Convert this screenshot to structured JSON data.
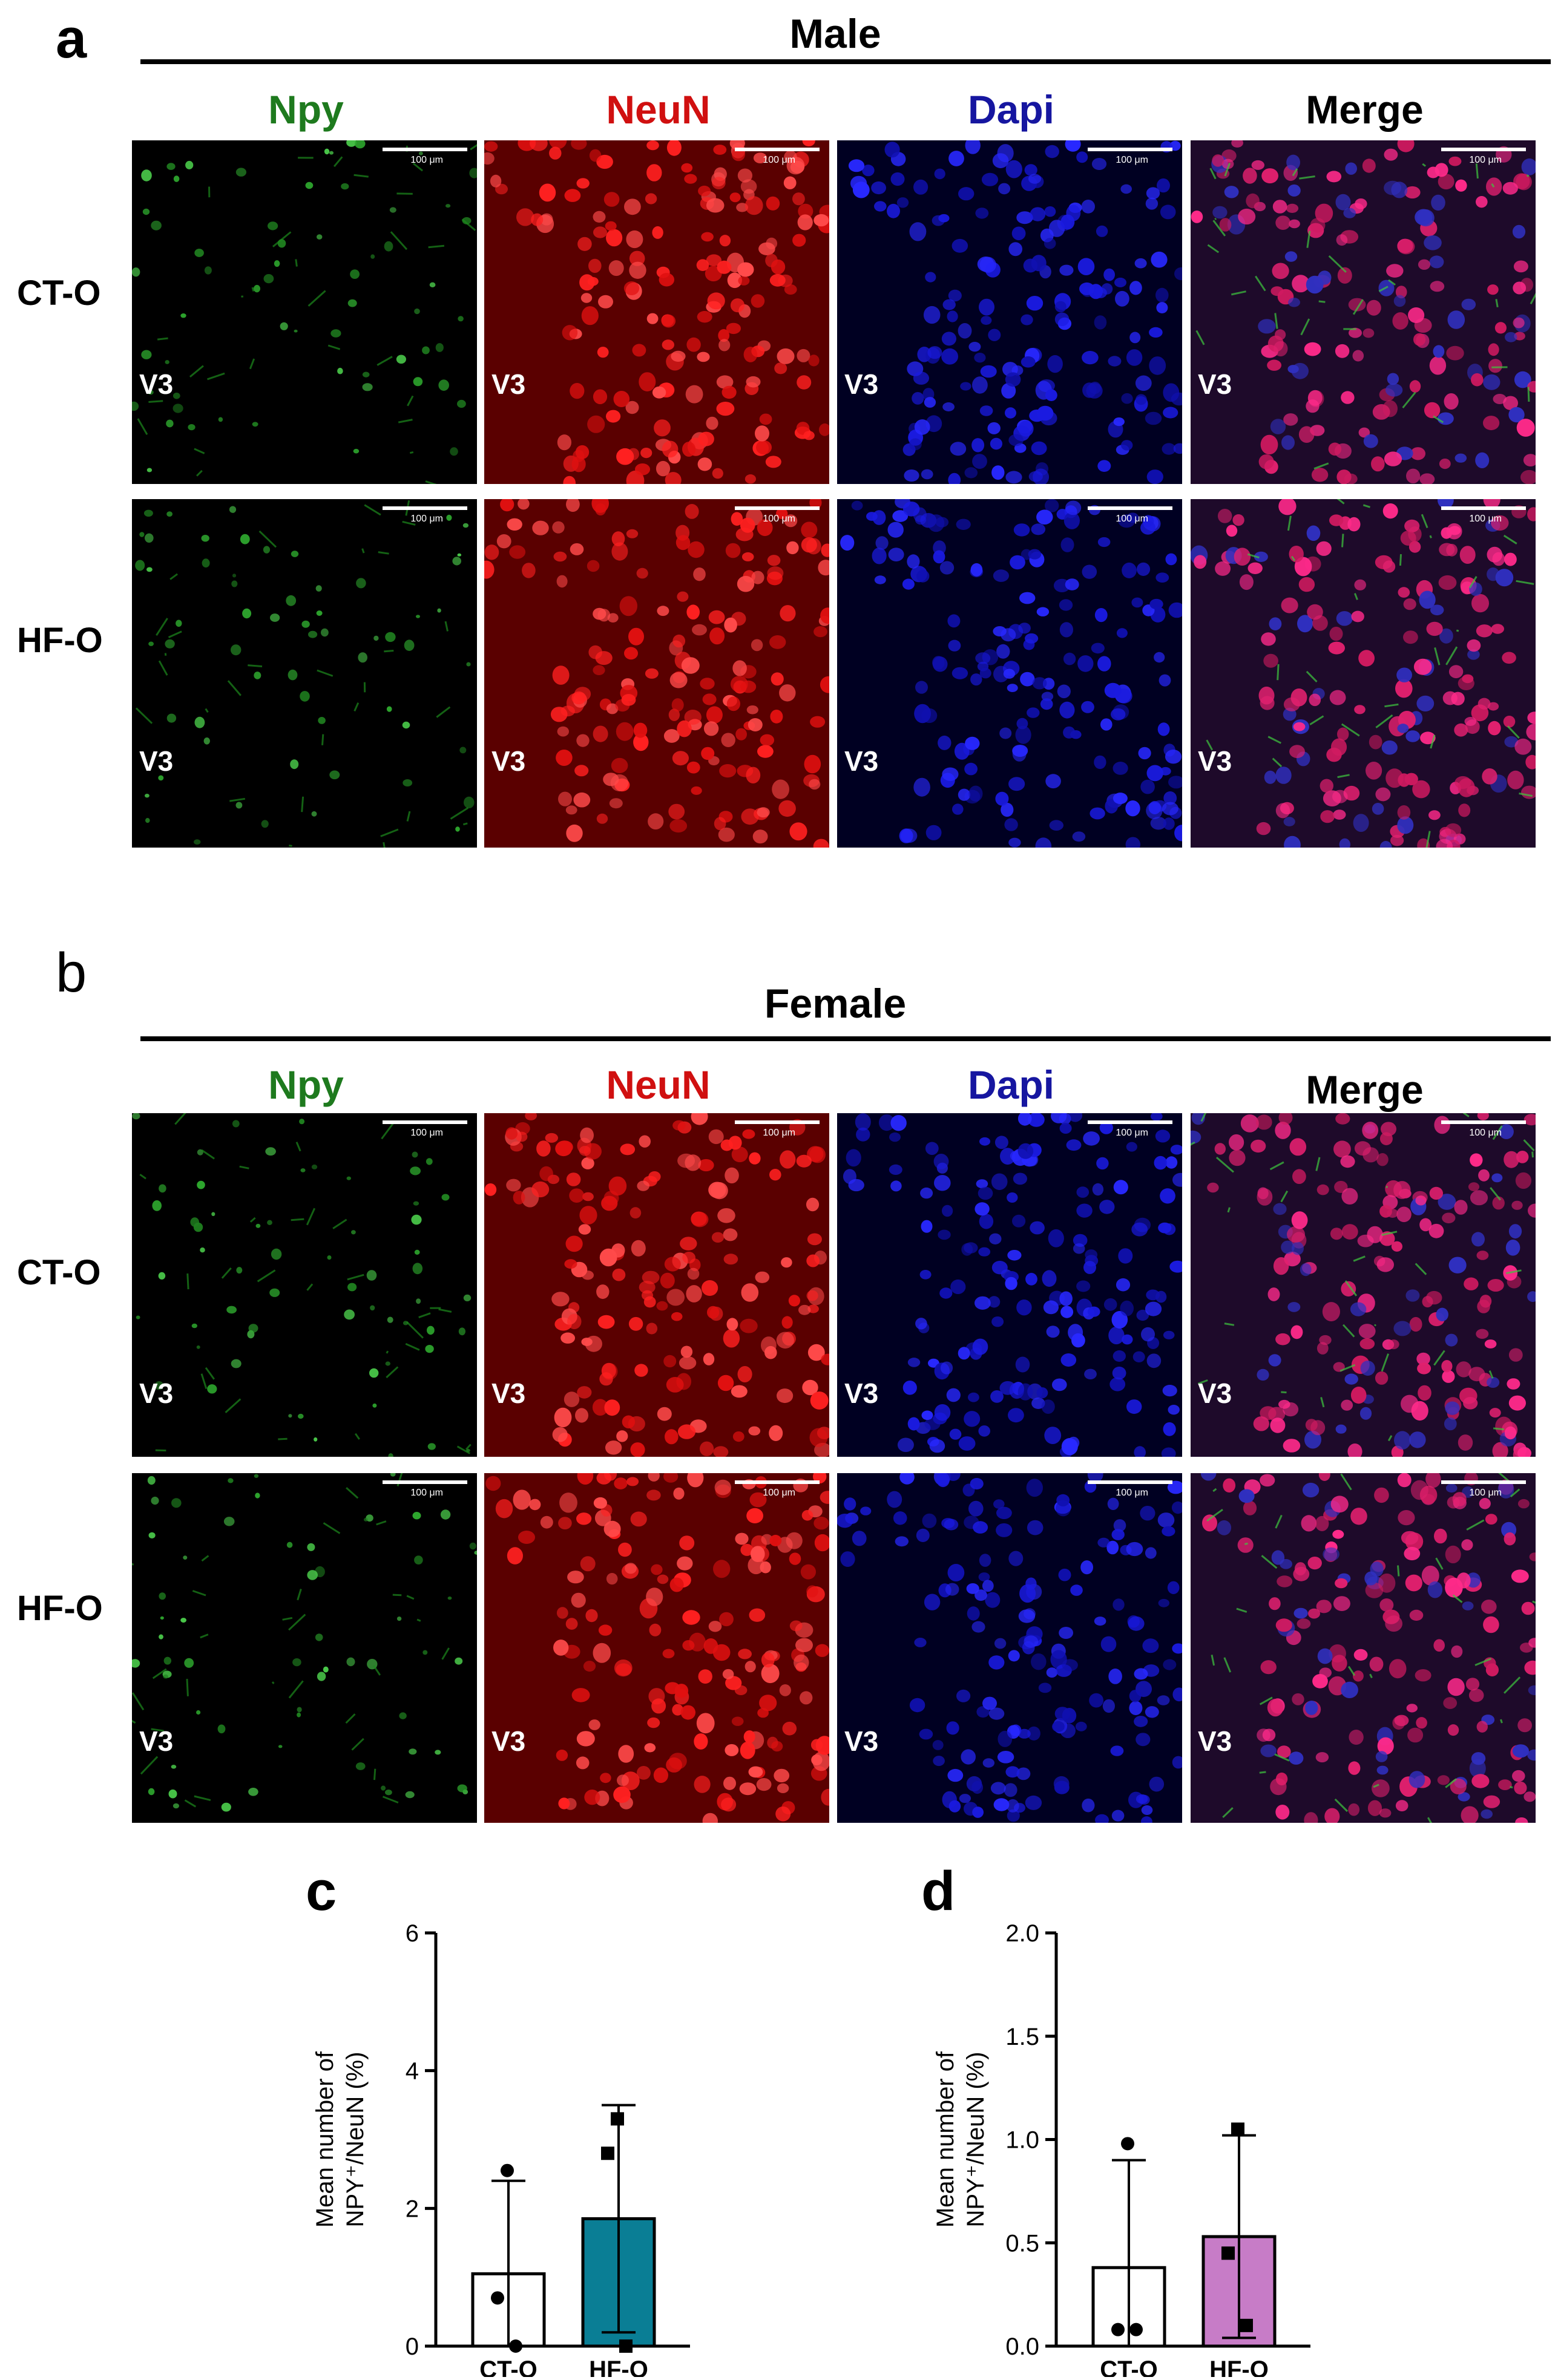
{
  "panels": {
    "a": {
      "letter": "a",
      "title": "Male"
    },
    "b": {
      "letter": "b",
      "title": "Female"
    },
    "c": {
      "letter": "c"
    },
    "d": {
      "letter": "d"
    }
  },
  "channels": [
    {
      "label": "Npy",
      "color": "#1e7a1e"
    },
    {
      "label": "NeuN",
      "color": "#d01010"
    },
    {
      "label": "Dapi",
      "color": "#1616a0"
    },
    {
      "label": "Merge",
      "color": "#000000"
    }
  ],
  "rows": [
    "CT-O",
    "HF-O"
  ],
  "scale_label": "100 μm",
  "ventricle_label": "V3",
  "chart_data": [
    {
      "type": "bar",
      "panel": "c",
      "categories": [
        "CT-O",
        "HF-O"
      ],
      "values": [
        1.05,
        1.85
      ],
      "error": [
        1.35,
        1.65
      ],
      "points": [
        [
          2.55,
          0.7,
          0.0
        ],
        [
          3.3,
          2.8,
          0.0
        ]
      ],
      "marker": [
        "circle",
        "square"
      ],
      "colors": [
        "#ffffff",
        "#0a7e95"
      ],
      "ylabel_line1": "Mean number of",
      "ylabel_line2": "NPY⁺/NeuN (%)",
      "ylim": [
        0,
        6
      ],
      "yticks": [
        "0",
        "2",
        "4",
        "6"
      ]
    },
    {
      "type": "bar",
      "panel": "d",
      "categories": [
        "CT-O",
        "HF-O"
      ],
      "values": [
        0.38,
        0.53
      ],
      "error": [
        0.52,
        0.49
      ],
      "points": [
        [
          0.98,
          0.08,
          0.08
        ],
        [
          1.05,
          0.45,
          0.1
        ]
      ],
      "marker": [
        "circle",
        "square"
      ],
      "colors": [
        "#ffffff",
        "#c77cc7"
      ],
      "ylabel_line1": "Mean number of",
      "ylabel_line2": "NPY⁺/NeuN (%)",
      "ylim": [
        0,
        2.0
      ],
      "yticks": [
        "0.0",
        "0.5",
        "1.0",
        "1.5",
        "2.0"
      ]
    }
  ]
}
